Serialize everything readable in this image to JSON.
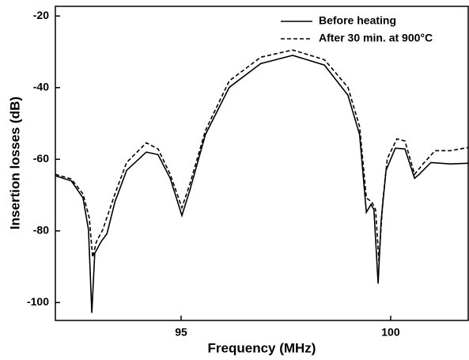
{
  "chart_data": {
    "type": "line",
    "x_label": "Frequency (MHz)",
    "y_label": "Insertion losses (dB)",
    "xlim": [
      92,
      101.85
    ],
    "ylim": [
      -105,
      -17.3
    ],
    "xticks": [
      95,
      100
    ],
    "yticks": [
      -20,
      -40,
      -60,
      -80,
      -100
    ],
    "legend": "upper right",
    "series": [
      {
        "name": "Before heating",
        "color": "#000000",
        "dash": false,
        "x": [
          92,
          92.38,
          92.66,
          92.79,
          92.87,
          92.94,
          93.09,
          93.23,
          93.42,
          93.7,
          94.17,
          94.45,
          94.74,
          95.02,
          95.21,
          95.58,
          96.15,
          96.9,
          97.66,
          98.42,
          98.98,
          99.26,
          99.42,
          99.53,
          99.6,
          99.7,
          99.77,
          99.89,
          100.11,
          100.34,
          100.57,
          100.68,
          100.96,
          101.43,
          101.85
        ],
        "values": [
          -64.6,
          -66,
          -70.8,
          -79.7,
          -102.9,
          -86.3,
          -83,
          -80.8,
          -71.9,
          -63.1,
          -58,
          -58.7,
          -65.3,
          -75.7,
          -68.6,
          -53.1,
          -39.9,
          -33.3,
          -31,
          -33.7,
          -42.1,
          -53.1,
          -74.8,
          -72.6,
          -74.1,
          -94.7,
          -77.5,
          -63.1,
          -56.9,
          -57.1,
          -65.3,
          -64.2,
          -60.9,
          -61.3,
          -61.1
        ]
      },
      {
        "name": "After 30 min. at 900°C",
        "color": "#000000",
        "dash": true,
        "x": [
          92,
          92.38,
          92.66,
          92.81,
          92.89,
          92.98,
          93.13,
          93.42,
          93.7,
          94.17,
          94.45,
          94.74,
          95.02,
          95.21,
          95.58,
          96.15,
          96.9,
          97.66,
          98.42,
          98.98,
          99.26,
          99.42,
          99.55,
          99.64,
          99.72,
          99.81,
          99.92,
          100.15,
          100.34,
          100.57,
          100.77,
          101.06,
          101.43,
          101.85
        ],
        "values": [
          -64.2,
          -65.5,
          -69.7,
          -76.4,
          -87.4,
          -83,
          -79.7,
          -69.7,
          -60.9,
          -55.4,
          -57.1,
          -64.2,
          -73.5,
          -66.9,
          -52,
          -38.1,
          -31.5,
          -29.5,
          -32.2,
          -39.9,
          -50.9,
          -70.8,
          -71.9,
          -74.1,
          -88.5,
          -71.9,
          -59.8,
          -54.3,
          -54.9,
          -64.2,
          -61.3,
          -57.6,
          -57.6,
          -56.7
        ]
      }
    ]
  }
}
